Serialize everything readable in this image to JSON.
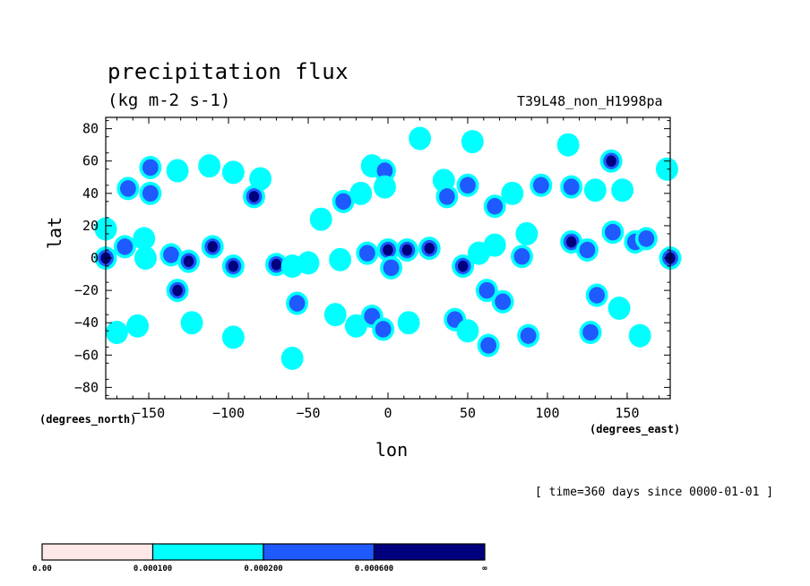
{
  "chart_data": {
    "type": "contour",
    "title": "precipitation flux",
    "units": "(kg m-2 s-1)",
    "run_id": "T39L48_non_H1998pa",
    "xlabel": "lon",
    "ylabel": "lat",
    "x_units_note": "(degrees_east)",
    "y_units_note": "(degrees_north)",
    "time_note": "[ time=360 days since 0000-01-01 ]",
    "xlim": [
      -177,
      177
    ],
    "ylim": [
      -87,
      87
    ],
    "x_ticks": [
      -150,
      -100,
      -50,
      0,
      50,
      100,
      150
    ],
    "x_tick_labels": [
      "−150",
      "−100",
      "−50",
      "0",
      "50",
      "100",
      "150"
    ],
    "y_ticks": [
      -80,
      -60,
      -40,
      -20,
      0,
      20,
      40,
      60,
      80
    ],
    "y_tick_labels": [
      "−80",
      "−60",
      "−40",
      "−20",
      "0",
      "20",
      "40",
      "60",
      "80"
    ],
    "colorbar": {
      "levels": [
        "0.00",
        "0.000100",
        "0.000200",
        "0.000600",
        "∞"
      ],
      "colors": [
        "#ffe8e8",
        "#00ffff",
        "#1f5aff",
        "#00007f"
      ]
    },
    "features": [
      {
        "lon": -149,
        "lat": 56,
        "level": 2
      },
      {
        "lon": -132,
        "lat": 54,
        "level": 1
      },
      {
        "lon": -112,
        "lat": 57,
        "level": 1
      },
      {
        "lon": -97,
        "lat": 53,
        "level": 1
      },
      {
        "lon": -80,
        "lat": 49,
        "level": 1
      },
      {
        "lon": -163,
        "lat": 43,
        "level": 2
      },
      {
        "lon": -149,
        "lat": 40,
        "level": 2
      },
      {
        "lon": -84,
        "lat": 38,
        "level": 3
      },
      {
        "lon": -28,
        "lat": 35,
        "level": 2
      },
      {
        "lon": -17,
        "lat": 40,
        "level": 1
      },
      {
        "lon": -10,
        "lat": 57,
        "level": 1
      },
      {
        "lon": -2,
        "lat": 54,
        "level": 2
      },
      {
        "lon": -2,
        "lat": 44,
        "level": 1
      },
      {
        "lon": 20,
        "lat": 74,
        "level": 1
      },
      {
        "lon": 53,
        "lat": 72,
        "level": 1
      },
      {
        "lon": 113,
        "lat": 70,
        "level": 1
      },
      {
        "lon": 140,
        "lat": 60,
        "level": 3
      },
      {
        "lon": 175,
        "lat": 55,
        "level": 1
      },
      {
        "lon": 35,
        "lat": 48,
        "level": 1
      },
      {
        "lon": 50,
        "lat": 45,
        "level": 2
      },
      {
        "lon": 37,
        "lat": 38,
        "level": 2
      },
      {
        "lon": 67,
        "lat": 32,
        "level": 2
      },
      {
        "lon": 78,
        "lat": 40,
        "level": 1
      },
      {
        "lon": 96,
        "lat": 45,
        "level": 2
      },
      {
        "lon": 115,
        "lat": 44,
        "level": 2
      },
      {
        "lon": 130,
        "lat": 42,
        "level": 1
      },
      {
        "lon": 147,
        "lat": 42,
        "level": 1
      },
      {
        "lon": -42,
        "lat": 24,
        "level": 1
      },
      {
        "lon": -177,
        "lat": 18,
        "level": 1
      },
      {
        "lon": -165,
        "lat": 7,
        "level": 2
      },
      {
        "lon": -153,
        "lat": 12,
        "level": 1
      },
      {
        "lon": -110,
        "lat": 7,
        "level": 3
      },
      {
        "lon": -177,
        "lat": 0,
        "level": 3
      },
      {
        "lon": -152,
        "lat": 0,
        "level": 1
      },
      {
        "lon": -136,
        "lat": 2,
        "level": 2
      },
      {
        "lon": -125,
        "lat": -2,
        "level": 4
      },
      {
        "lon": -97,
        "lat": -5,
        "level": 3
      },
      {
        "lon": -70,
        "lat": -4,
        "level": 4
      },
      {
        "lon": -60,
        "lat": -5,
        "level": 1
      },
      {
        "lon": -50,
        "lat": -3,
        "level": 1
      },
      {
        "lon": -30,
        "lat": -1,
        "level": 1
      },
      {
        "lon": -13,
        "lat": 3,
        "level": 2
      },
      {
        "lon": 0,
        "lat": 5,
        "level": 4
      },
      {
        "lon": 12,
        "lat": 5,
        "level": 4
      },
      {
        "lon": 26,
        "lat": 6,
        "level": 4
      },
      {
        "lon": 2,
        "lat": -6,
        "level": 2
      },
      {
        "lon": 47,
        "lat": -5,
        "level": 3
      },
      {
        "lon": 57,
        "lat": 3,
        "level": 1
      },
      {
        "lon": 67,
        "lat": 8,
        "level": 1
      },
      {
        "lon": 84,
        "lat": 1,
        "level": 2
      },
      {
        "lon": 87,
        "lat": 15,
        "level": 1
      },
      {
        "lon": 115,
        "lat": 10,
        "level": 4
      },
      {
        "lon": 125,
        "lat": 5,
        "level": 2
      },
      {
        "lon": 141,
        "lat": 16,
        "level": 2
      },
      {
        "lon": 155,
        "lat": 10,
        "level": 2
      },
      {
        "lon": 162,
        "lat": 12,
        "level": 2
      },
      {
        "lon": 177,
        "lat": 0,
        "level": 3
      },
      {
        "lon": -132,
        "lat": -20,
        "level": 4
      },
      {
        "lon": -123,
        "lat": -40,
        "level": 1
      },
      {
        "lon": -57,
        "lat": -28,
        "level": 2
      },
      {
        "lon": -157,
        "lat": -42,
        "level": 1
      },
      {
        "lon": -170,
        "lat": -46,
        "level": 1
      },
      {
        "lon": -97,
        "lat": -49,
        "level": 1
      },
      {
        "lon": -33,
        "lat": -35,
        "level": 1
      },
      {
        "lon": -20,
        "lat": -42,
        "level": 1
      },
      {
        "lon": -10,
        "lat": -36,
        "level": 2
      },
      {
        "lon": -3,
        "lat": -44,
        "level": 2
      },
      {
        "lon": 13,
        "lat": -40,
        "level": 1
      },
      {
        "lon": 42,
        "lat": -38,
        "level": 2
      },
      {
        "lon": 50,
        "lat": -45,
        "level": 1
      },
      {
        "lon": 62,
        "lat": -20,
        "level": 2
      },
      {
        "lon": 72,
        "lat": -27,
        "level": 2
      },
      {
        "lon": 63,
        "lat": -54,
        "level": 2
      },
      {
        "lon": 88,
        "lat": -48,
        "level": 2
      },
      {
        "lon": 131,
        "lat": -23,
        "level": 2
      },
      {
        "lon": 145,
        "lat": -31,
        "level": 1
      },
      {
        "lon": 127,
        "lat": -46,
        "level": 2
      },
      {
        "lon": 158,
        "lat": -48,
        "level": 1
      },
      {
        "lon": -60,
        "lat": -62,
        "level": 1
      }
    ]
  }
}
